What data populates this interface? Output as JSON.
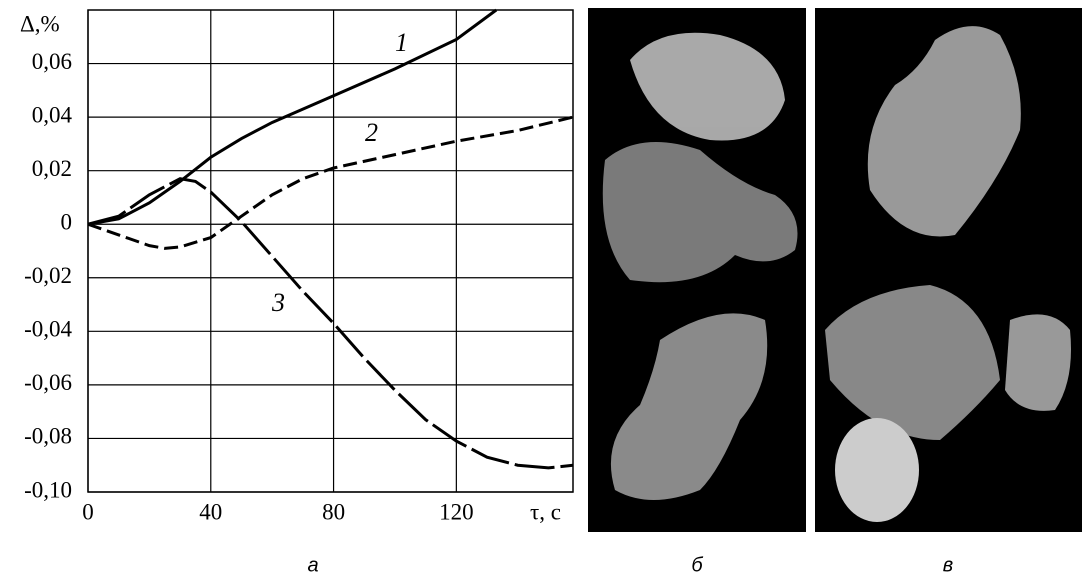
{
  "chart_data": {
    "type": "line",
    "x_label": "τ, с",
    "y_label": "Δ,%",
    "xlim": [
      0,
      158
    ],
    "ylim": [
      -0.1,
      0.08
    ],
    "xticks": [
      0,
      40,
      80,
      120
    ],
    "yticks": [
      {
        "value": -0.1,
        "label": "-0,10"
      },
      {
        "value": -0.08,
        "label": "-0,08"
      },
      {
        "value": -0.06,
        "label": "-0,06"
      },
      {
        "value": -0.04,
        "label": "-0,04"
      },
      {
        "value": -0.02,
        "label": "-0,02"
      },
      0,
      {
        "value": 0.02,
        "label": "0,02"
      },
      {
        "value": 0.04,
        "label": "0,04"
      },
      {
        "value": 0.06,
        "label": "0,06"
      }
    ],
    "grid": true,
    "series": [
      {
        "name": "1",
        "color": "#000000",
        "style": "solid",
        "x": [
          0,
          10,
          20,
          30,
          40,
          50,
          60,
          70,
          80,
          100,
          120,
          133
        ],
        "values": [
          0,
          0.002,
          0.008,
          0.016,
          0.025,
          0.032,
          0.038,
          0.043,
          0.048,
          0.058,
          0.069,
          0.08
        ]
      },
      {
        "name": "2",
        "color": "#000000",
        "style": "dashed",
        "x": [
          0,
          10,
          20,
          25,
          30,
          40,
          50,
          60,
          70,
          80,
          100,
          120,
          140,
          158
        ],
        "values": [
          0,
          -0.004,
          -0.008,
          -0.009,
          -0.0085,
          -0.005,
          0.003,
          0.011,
          0.017,
          0.021,
          0.026,
          0.031,
          0.035,
          0.04
        ]
      },
      {
        "name": "3",
        "color": "#000000",
        "style": "long-dashed",
        "x": [
          0,
          10,
          20,
          30,
          35,
          40,
          50,
          60,
          70,
          80,
          90,
          100,
          110,
          120,
          130,
          140,
          150,
          158
        ],
        "values": [
          0,
          0.003,
          0.011,
          0.017,
          0.016,
          0.012,
          0.001,
          -0.012,
          -0.025,
          -0.037,
          -0.05,
          -0.062,
          -0.073,
          -0.081,
          -0.087,
          -0.09,
          -0.091,
          -0.09
        ]
      }
    ]
  },
  "panels": [
    "а",
    "б",
    "в"
  ]
}
